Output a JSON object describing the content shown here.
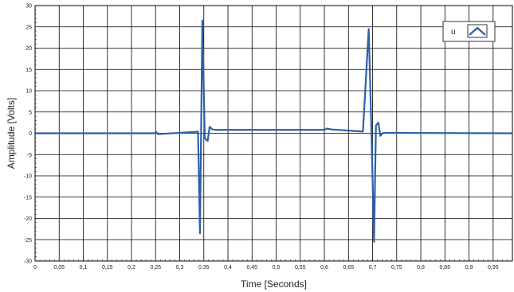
{
  "chart_data": {
    "type": "line",
    "title": "",
    "xlabel": "Time [Seconds]",
    "ylabel": "Amplitude [Volts]",
    "xlim": [
      0,
      0.99
    ],
    "ylim": [
      -30,
      30
    ],
    "grid": true,
    "legend_position": "top-right",
    "x_ticks": [
      0,
      0.05,
      0.1,
      0.15,
      0.2,
      0.25,
      0.3,
      0.35,
      0.4,
      0.45,
      0.5,
      0.55,
      0.6,
      0.65,
      0.7,
      0.75,
      0.8,
      0.85,
      0.9,
      0.95
    ],
    "x_tick_labels": [
      "0",
      "0,05",
      "0,1",
      "0,15",
      "0,2",
      "0,25",
      "0,3",
      "0,35",
      "0,4",
      "0,45",
      "0,5",
      "0,55",
      "0,6",
      "0,65",
      "0,7",
      "0,75",
      "0,8",
      "0,85",
      "0,9",
      "0,95"
    ],
    "y_ticks": [
      30,
      25,
      20,
      15,
      10,
      5,
      0,
      -5,
      -10,
      -15,
      -20,
      -25,
      -30
    ],
    "y_tick_labels": [
      "30",
      "25",
      "20",
      "15",
      "10",
      "5",
      "0",
      "-5",
      "-10",
      "-15",
      "-20",
      "-25",
      "-30"
    ],
    "series": [
      {
        "name": "u",
        "color": "#2e5fa8",
        "x": [
          0,
          0.248,
          0.251,
          0.255,
          0.33,
          0.338,
          0.342,
          0.347,
          0.352,
          0.358,
          0.362,
          0.368,
          0.375,
          0.6,
          0.605,
          0.615,
          0.68,
          0.692,
          0.698,
          0.703,
          0.707,
          0.712,
          0.716,
          0.722,
          0.99
        ],
        "y": [
          0,
          0,
          0.3,
          -0.2,
          0.3,
          0.4,
          -23.5,
          26.5,
          -1.2,
          -1.8,
          1.5,
          0.9,
          0.8,
          0.8,
          1.1,
          0.9,
          0.4,
          24.5,
          -1,
          -25.5,
          1.8,
          2.5,
          -0.6,
          0.1,
          0
        ]
      }
    ]
  },
  "legend": {
    "label": "u",
    "icon": "line-series-icon"
  }
}
